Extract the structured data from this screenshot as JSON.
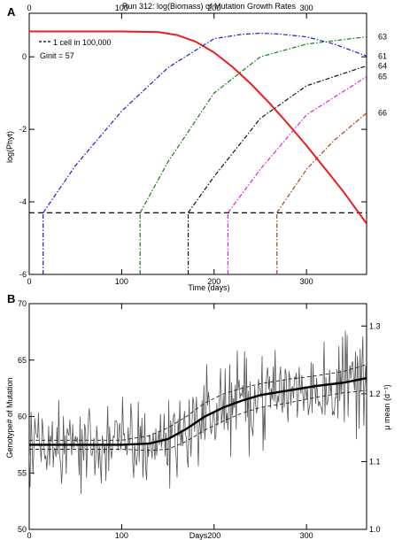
{
  "chart_data": [
    {
      "panel": "A",
      "type": "line",
      "title": "Run 312: log(Biomass) of Mutation Growth Rates",
      "xlabel": "Time (days)",
      "ylabel": "log(Phyt)",
      "xlim": [
        0,
        365
      ],
      "ylim": [
        -6,
        1.2
      ],
      "xticks": [
        0,
        100,
        200,
        300
      ],
      "yticks": [
        -6,
        -4,
        -2,
        0
      ],
      "legend": {
        "line_label": "1 cell in 100,000",
        "ginit_label": "Ginit = 57",
        "position": "top-left"
      },
      "threshold": -4.3,
      "series": [
        {
          "name": "",
          "color": "#ee1c1c",
          "style": "solid",
          "x": [
            0,
            50,
            100,
            140,
            160,
            180,
            200,
            220,
            240,
            260,
            280,
            300,
            320,
            340,
            365
          ],
          "y": [
            0.7,
            0.7,
            0.7,
            0.68,
            0.6,
            0.42,
            0.12,
            -0.28,
            -0.75,
            -1.28,
            -1.85,
            -2.45,
            -3.08,
            -3.72,
            -4.6
          ]
        },
        {
          "name": "61",
          "color": "#1c1cd6",
          "style": "dashdot",
          "start": 15,
          "x": [
            15,
            50,
            100,
            150,
            200,
            230,
            250,
            270,
            300,
            330,
            365
          ],
          "y": [
            -4.3,
            -3.0,
            -1.5,
            -0.3,
            0.5,
            0.62,
            0.65,
            0.63,
            0.55,
            0.35,
            0.02
          ]
        },
        {
          "name": "63",
          "color": "#1a7a1a",
          "style": "dashdot",
          "start": 120,
          "x": [
            120,
            150,
            200,
            250,
            300,
            365
          ],
          "y": [
            -4.3,
            -2.9,
            -1.0,
            0.0,
            0.35,
            0.55
          ]
        },
        {
          "name": "64",
          "color": "#111111",
          "style": "dashdot",
          "start": 172,
          "x": [
            172,
            200,
            250,
            300,
            365
          ],
          "y": [
            -4.3,
            -3.3,
            -1.7,
            -0.8,
            -0.25
          ]
        },
        {
          "name": "65",
          "color": "#dd22dd",
          "style": "dashdot",
          "start": 215,
          "x": [
            215,
            250,
            300,
            365
          ],
          "y": [
            -4.3,
            -3.1,
            -1.6,
            -0.55
          ]
        },
        {
          "name": "66",
          "color": "#a8441c",
          "style": "dashdot",
          "start": 268,
          "x": [
            268,
            300,
            330,
            365
          ],
          "y": [
            -4.3,
            -3.1,
            -2.3,
            -1.55
          ]
        }
      ]
    },
    {
      "panel": "B",
      "type": "line",
      "xlabel": "Days",
      "ylabel": "Genotype# of Mutation",
      "y2label": "μ mean (d⁻¹)",
      "xlim": [
        0,
        365
      ],
      "ylim": [
        50,
        70
      ],
      "y2lim": [
        1.0,
        1.333
      ],
      "xticks": [
        0,
        100,
        200,
        300
      ],
      "yticks": [
        50,
        55,
        60,
        65,
        70
      ],
      "y2ticks": [
        1.0,
        1.1,
        1.2,
        1.3
      ],
      "smooth": {
        "x": [
          0,
          50,
          100,
          130,
          150,
          170,
          190,
          210,
          230,
          250,
          280,
          310,
          340,
          365
        ],
        "y": [
          57.5,
          57.5,
          57.5,
          57.6,
          58.0,
          58.9,
          60.0,
          60.8,
          61.4,
          61.9,
          62.3,
          62.7,
          63.0,
          63.4
        ]
      },
      "band_upper": {
        "x": [
          0,
          50,
          100,
          130,
          150,
          170,
          190,
          210,
          230,
          250,
          280,
          310,
          340,
          365
        ],
        "y": [
          57.9,
          57.9,
          57.9,
          58.3,
          59.0,
          60.0,
          61.2,
          62.0,
          62.5,
          62.9,
          63.3,
          63.6,
          64.0,
          64.6
        ]
      },
      "band_lower": {
        "x": [
          0,
          50,
          100,
          130,
          150,
          170,
          190,
          210,
          230,
          250,
          280,
          310,
          340,
          365
        ],
        "y": [
          57.1,
          57.1,
          57.1,
          57.0,
          57.1,
          57.8,
          58.8,
          59.6,
          60.3,
          60.8,
          61.2,
          61.7,
          62.1,
          62.3
        ]
      },
      "noise_amplitude": 2.4
    }
  ]
}
